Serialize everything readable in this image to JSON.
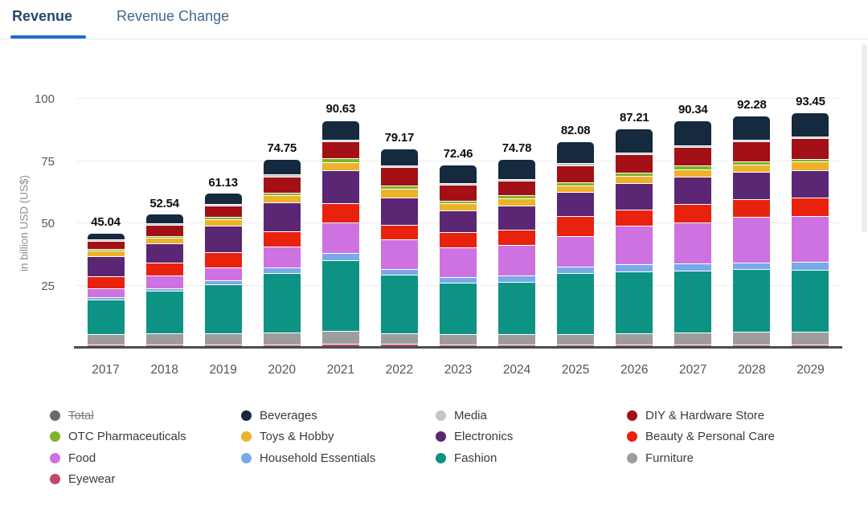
{
  "tabs": {
    "revenue": "Revenue",
    "revenue_change": "Revenue Change"
  },
  "chart_data": {
    "type": "bar",
    "stacked": true,
    "ylabel": "in billion USD (US$)",
    "ylim": [
      0,
      100
    ],
    "yticks": [
      25,
      50,
      75,
      100
    ],
    "grid": true,
    "categories": [
      "2017",
      "2018",
      "2019",
      "2020",
      "2021",
      "2022",
      "2023",
      "2024",
      "2025",
      "2026",
      "2027",
      "2028",
      "2029"
    ],
    "totals": [
      45.04,
      52.54,
      61.13,
      74.75,
      90.63,
      79.17,
      72.46,
      74.78,
      82.08,
      87.21,
      90.34,
      92.28,
      93.45
    ],
    "stack_order": "bottom to top",
    "series": [
      {
        "name": "Eyewear",
        "color": "#c04a68",
        "values": [
          0.53,
          0.52,
          0.53,
          0.77,
          1.05,
          1.04,
          0.62,
          0.52,
          0.51,
          0.62,
          0.77,
          0.52,
          0.52
        ]
      },
      {
        "name": "Furniture",
        "color": "#9d9d9d",
        "values": [
          4.28,
          4.37,
          4.52,
          4.67,
          5.19,
          4.27,
          4.04,
          4.03,
          4.03,
          4.46,
          4.86,
          4.97,
          5.16
        ]
      },
      {
        "name": "Fashion",
        "color": "#0d9384",
        "values": [
          13.8,
          17.16,
          19.78,
          23.79,
          28.44,
          23.51,
          20.84,
          21.07,
          24.5,
          24.89,
          24.61,
          25.14,
          24.86
        ]
      },
      {
        "name": "Household Essentials",
        "color": "#78a9ea",
        "values": [
          0.96,
          1.07,
          1.37,
          2.29,
          2.7,
          2.18,
          2.18,
          2.58,
          2.58,
          2.9,
          3.0,
          2.9,
          3.09
        ]
      },
      {
        "name": "Food",
        "color": "#cd72e0",
        "values": [
          3.64,
          5.12,
          5.37,
          8.62,
          12.46,
          11.96,
          11.92,
          12.19,
          12.41,
          15.56,
          16.55,
          18.21,
          18.36
        ]
      },
      {
        "name": "Beauty & Personal Care",
        "color": "#e8220d",
        "values": [
          4.81,
          5.01,
          5.89,
          6.03,
          7.47,
          5.83,
          6.01,
          6.09,
          7.96,
          6.33,
          7.45,
          7.24,
          7.43
        ]
      },
      {
        "name": "Electronics",
        "color": "#5b2775",
        "values": [
          7.92,
          7.99,
          10.73,
          11.53,
          13.39,
          10.82,
          8.71,
          9.71,
          9.72,
          10.68,
          10.76,
          10.76,
          10.93
        ]
      },
      {
        "name": "Toys & Hobby",
        "color": "#ecb22a",
        "values": [
          2.14,
          2.24,
          2.74,
          3.12,
          3.32,
          3.64,
          3.01,
          2.89,
          2.79,
          2.9,
          3.1,
          3.1,
          3.61
        ]
      },
      {
        "name": "OTC Pharmaceuticals",
        "color": "#7cb526",
        "values": [
          0.75,
          0.64,
          0.84,
          0.94,
          1.35,
          1.35,
          1.14,
          1.24,
          1.14,
          1.35,
          1.45,
          1.34,
          1.13
        ]
      },
      {
        "name": "DIY & Hardware Store",
        "color": "#a31016",
        "values": [
          3.32,
          4.37,
          4.52,
          6.44,
          6.85,
          7.39,
          6.32,
          5.99,
          6.93,
          7.36,
          7.55,
          7.86,
          8.25
        ]
      },
      {
        "name": "Media",
        "color": "#c5c5c5",
        "values": [
          0.32,
          0.32,
          0.32,
          0.42,
          0.52,
          0.52,
          0.41,
          0.52,
          0.62,
          0.52,
          0.52,
          0.52,
          0.52
        ]
      },
      {
        "name": "Beverages",
        "color": "#15293f",
        "values": [
          2.57,
          3.73,
          4.52,
          6.13,
          7.89,
          6.66,
          7.26,
          7.95,
          8.89,
          9.64,
          9.72,
          9.72,
          9.59
        ]
      }
    ],
    "legend": {
      "position": "bottom",
      "items": [
        {
          "label": "Total",
          "color": "#6b6b6b",
          "disabled": true
        },
        {
          "label": "Beverages",
          "color": "#15293f",
          "disabled": false
        },
        {
          "label": "Media",
          "color": "#c5c5c5",
          "disabled": false
        },
        {
          "label": "DIY & Hardware Store",
          "color": "#a31016",
          "disabled": false
        },
        {
          "label": "OTC Pharmaceuticals",
          "color": "#7cb526",
          "disabled": false
        },
        {
          "label": "Toys & Hobby",
          "color": "#ecb22a",
          "disabled": false
        },
        {
          "label": "Electronics",
          "color": "#5b2775",
          "disabled": false
        },
        {
          "label": "Beauty & Personal Care",
          "color": "#e8220d",
          "disabled": false
        },
        {
          "label": "Food",
          "color": "#cd72e0",
          "disabled": false
        },
        {
          "label": "Household Essentials",
          "color": "#78a9ea",
          "disabled": false
        },
        {
          "label": "Fashion",
          "color": "#0d9384",
          "disabled": false
        },
        {
          "label": "Furniture",
          "color": "#9d9d9d",
          "disabled": false
        },
        {
          "label": "Eyewear",
          "color": "#c04a68",
          "disabled": false
        }
      ]
    }
  }
}
